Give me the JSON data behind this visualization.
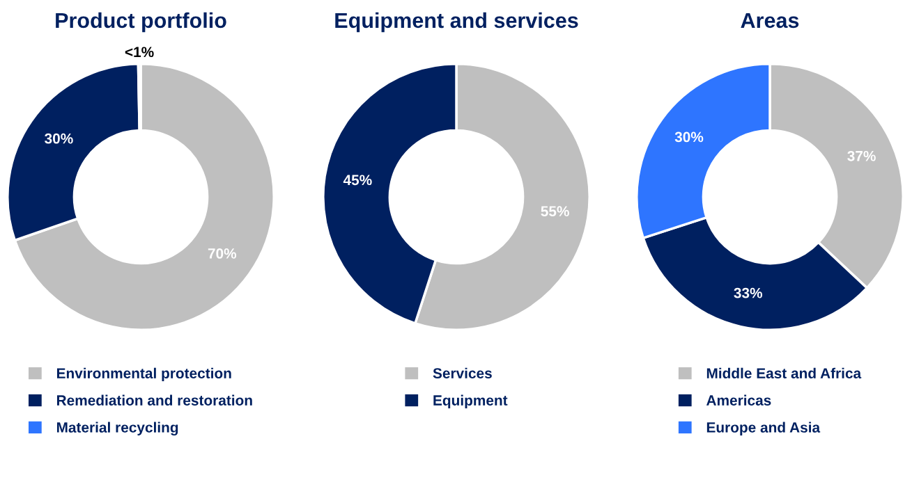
{
  "chart_data": [
    {
      "type": "donut",
      "title": "Product portfolio",
      "categories": [
        "Environmental protection",
        "Remediation and restoration",
        "Material recycling"
      ],
      "values": [
        69.7,
        30,
        0.3
      ],
      "value_labels": [
        "70%",
        "30%",
        "<1%"
      ],
      "colors": [
        "#bfbfbf",
        "#002060",
        "#2e75ff"
      ],
      "legend": "bottom"
    },
    {
      "type": "donut",
      "title": "Equipment and services",
      "categories": [
        "Services",
        "Equipment"
      ],
      "values": [
        55,
        45
      ],
      "value_labels": [
        "55%",
        "45%"
      ],
      "colors": [
        "#bfbfbf",
        "#002060"
      ],
      "legend": "bottom"
    },
    {
      "type": "donut",
      "title": "Areas",
      "categories": [
        "Middle East and Africa",
        "Americas",
        "Europe and Asia"
      ],
      "values": [
        37,
        33,
        30
      ],
      "value_labels": [
        "37%",
        "33%",
        "30%"
      ],
      "colors": [
        "#bfbfbf",
        "#002060",
        "#2e75ff"
      ],
      "legend": "bottom"
    }
  ]
}
